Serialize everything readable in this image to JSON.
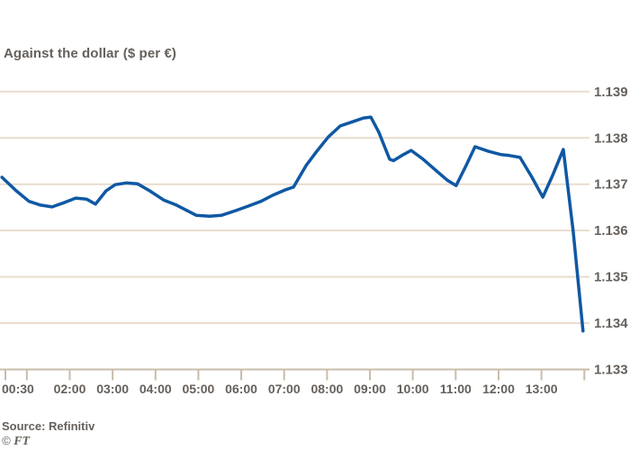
{
  "header": {
    "subtitle": "Against the dollar ($ per €)"
  },
  "footer": {
    "source": "Source: Refinitiv",
    "copyright_symbol": "©",
    "copyright_brand": "FT"
  },
  "colors": {
    "line": "#0f58a3",
    "grid": "#e9dccd",
    "axis": "#c9bcab",
    "text": "#66605b",
    "background": "#ffffff"
  },
  "chart_data": {
    "type": "line",
    "title": "Against the dollar ($ per €)",
    "xlabel": "",
    "ylabel": "",
    "grid": "horizontal",
    "legend": "none",
    "ylim": [
      1.133,
      1.139
    ],
    "xlim_hours": [
      0.4,
      14.05
    ],
    "y_ticks": [
      {
        "value": 1.139,
        "label": "1.139"
      },
      {
        "value": 1.138,
        "label": "1.138"
      },
      {
        "value": 1.137,
        "label": "1.137"
      },
      {
        "value": 1.136,
        "label": "1.136"
      },
      {
        "value": 1.135,
        "label": "1.135"
      },
      {
        "value": 1.134,
        "label": "1.134"
      },
      {
        "value": 1.133,
        "label": "1.133"
      }
    ],
    "x_ticks": [
      {
        "hour": 0.5,
        "label": "00:30",
        "align": "start"
      },
      {
        "hour": 1,
        "label": ""
      },
      {
        "hour": 2,
        "label": "02:00"
      },
      {
        "hour": 3,
        "label": "03:00"
      },
      {
        "hour": 4,
        "label": "04:00"
      },
      {
        "hour": 5,
        "label": "05:00"
      },
      {
        "hour": 6,
        "label": "06:00"
      },
      {
        "hour": 7,
        "label": "07:00"
      },
      {
        "hour": 8,
        "label": "08:00"
      },
      {
        "hour": 9,
        "label": "09:00"
      },
      {
        "hour": 10,
        "label": "10:00"
      },
      {
        "hour": 11,
        "label": "11:00"
      },
      {
        "hour": 12,
        "label": "12:00"
      },
      {
        "hour": 13,
        "label": "13:00"
      },
      {
        "hour": 14,
        "label": ""
      }
    ],
    "series": [
      {
        "name": "$ per €",
        "color": "#0f58a3",
        "points": [
          [
            0.42,
            1.13715
          ],
          [
            0.75,
            1.13686
          ],
          [
            1.05,
            1.13663
          ],
          [
            1.32,
            1.13655
          ],
          [
            1.59,
            1.13651
          ],
          [
            1.89,
            1.13661
          ],
          [
            2.14,
            1.1367
          ],
          [
            2.39,
            1.13668
          ],
          [
            2.6,
            1.13657
          ],
          [
            2.85,
            1.13686
          ],
          [
            3.06,
            1.13699
          ],
          [
            3.33,
            1.13703
          ],
          [
            3.58,
            1.13701
          ],
          [
            3.86,
            1.13686
          ],
          [
            4.19,
            1.13666
          ],
          [
            4.49,
            1.13655
          ],
          [
            4.95,
            1.13633
          ],
          [
            5.26,
            1.13631
          ],
          [
            5.54,
            1.13633
          ],
          [
            5.87,
            1.13643
          ],
          [
            6.17,
            1.13653
          ],
          [
            6.46,
            1.13663
          ],
          [
            6.73,
            1.13676
          ],
          [
            7.03,
            1.13688
          ],
          [
            7.22,
            1.13694
          ],
          [
            7.51,
            1.1374
          ],
          [
            7.76,
            1.13771
          ],
          [
            8.03,
            1.13802
          ],
          [
            8.31,
            1.13826
          ],
          [
            8.6,
            1.13835
          ],
          [
            8.85,
            1.13843
          ],
          [
            9.02,
            1.13845
          ],
          [
            9.21,
            1.13812
          ],
          [
            9.46,
            1.13754
          ],
          [
            9.55,
            1.13751
          ],
          [
            9.78,
            1.13764
          ],
          [
            9.96,
            1.13773
          ],
          [
            10.24,
            1.13754
          ],
          [
            10.51,
            1.13732
          ],
          [
            10.8,
            1.13709
          ],
          [
            11.01,
            1.13697
          ],
          [
            11.24,
            1.1374
          ],
          [
            11.45,
            1.13781
          ],
          [
            11.77,
            1.13771
          ],
          [
            12.06,
            1.13764
          ],
          [
            12.25,
            1.13762
          ],
          [
            12.5,
            1.13758
          ],
          [
            12.78,
            1.13715
          ],
          [
            13.03,
            1.13672
          ],
          [
            13.26,
            1.13719
          ],
          [
            13.51,
            1.13775
          ],
          [
            13.74,
            1.13598
          ],
          [
            13.97,
            1.13383
          ]
        ]
      }
    ]
  }
}
